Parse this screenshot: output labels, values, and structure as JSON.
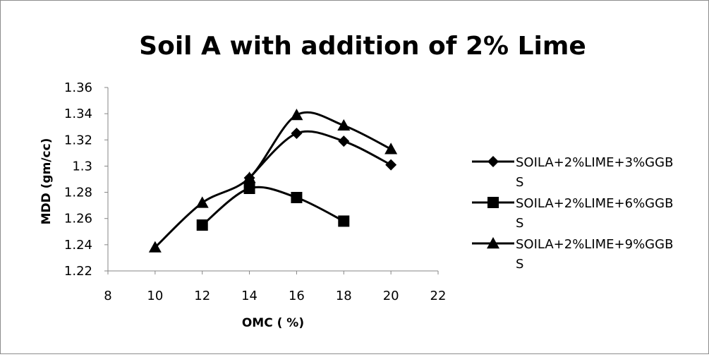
{
  "chart_data": {
    "type": "line",
    "title": "Soil A with addition of 2% Lime",
    "xlabel": "OMC ( %)",
    "ylabel": "MDD (gm/cc)",
    "xlim": [
      8,
      22
    ],
    "ylim": [
      1.22,
      1.36
    ],
    "x_ticks": [
      "8",
      "10",
      "12",
      "14",
      "16",
      "18",
      "20",
      "22"
    ],
    "y_ticks": [
      "1.22",
      "1.24",
      "1.26",
      "1.28",
      "1.3",
      "1.32",
      "1.34",
      "1.36"
    ],
    "grid": false,
    "legend_position": "right",
    "series": [
      {
        "name": "SOILA+2%LIME+3%GGBS",
        "legend_lines": [
          "SOILA+2%LIME+3%GGB",
          "S"
        ],
        "marker": "diamond",
        "color": "#000000",
        "x": [
          14,
          16,
          18,
          20
        ],
        "y": [
          1.291,
          1.325,
          1.319,
          1.301
        ]
      },
      {
        "name": "SOILA+2%LIME+6%GGBS",
        "legend_lines": [
          "SOILA+2%LIME+6%GGB",
          "S"
        ],
        "marker": "square",
        "color": "#000000",
        "x": [
          12,
          14,
          16,
          18
        ],
        "y": [
          1.255,
          1.283,
          1.276,
          1.258
        ]
      },
      {
        "name": "SOILA+2%LIME+9%GGBS",
        "legend_lines": [
          "SOILA+2%LIME+9%GGB",
          "S"
        ],
        "marker": "triangle",
        "color": "#000000",
        "x": [
          10,
          12,
          14,
          16,
          18,
          20
        ],
        "y": [
          1.238,
          1.272,
          1.291,
          1.339,
          1.331,
          1.313
        ]
      }
    ]
  }
}
